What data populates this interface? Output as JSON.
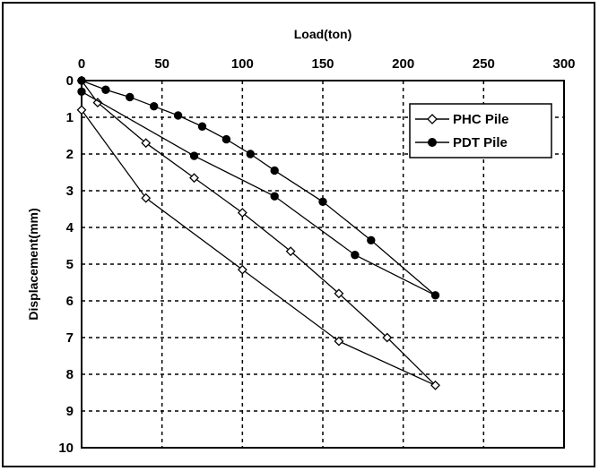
{
  "chart_data": {
    "type": "line",
    "xlabel": "Load(ton)",
    "ylabel": "Displacement(mm)",
    "xlim": [
      0,
      300
    ],
    "ylim": [
      0,
      10
    ],
    "x_axis_position": "top",
    "y_axis_inverted": true,
    "x_ticks": [
      0,
      50,
      100,
      150,
      200,
      250,
      300
    ],
    "y_ticks": [
      0,
      1,
      2,
      3,
      4,
      5,
      6,
      7,
      8,
      9,
      10
    ],
    "grid": true,
    "legend_position": "top-right",
    "series": [
      {
        "name": "PHC Pile",
        "marker": "open-diamond",
        "color": "#000000",
        "x": [
          0,
          10,
          40,
          70,
          100,
          130,
          160,
          190,
          220,
          160,
          100,
          40,
          0
        ],
        "y": [
          0,
          0.6,
          1.7,
          2.65,
          3.6,
          4.65,
          5.8,
          7.0,
          8.3,
          7.1,
          5.15,
          3.2,
          0.8
        ]
      },
      {
        "name": "PDT Pile",
        "marker": "filled-circle",
        "color": "#000000",
        "x": [
          0,
          15,
          30,
          45,
          60,
          75,
          90,
          105,
          120,
          150,
          180,
          220,
          170,
          120,
          70,
          0
        ],
        "y": [
          0,
          0.25,
          0.45,
          0.7,
          0.95,
          1.25,
          1.6,
          2.0,
          2.45,
          3.3,
          4.35,
          5.85,
          4.75,
          3.15,
          2.05,
          0.3
        ]
      }
    ]
  }
}
